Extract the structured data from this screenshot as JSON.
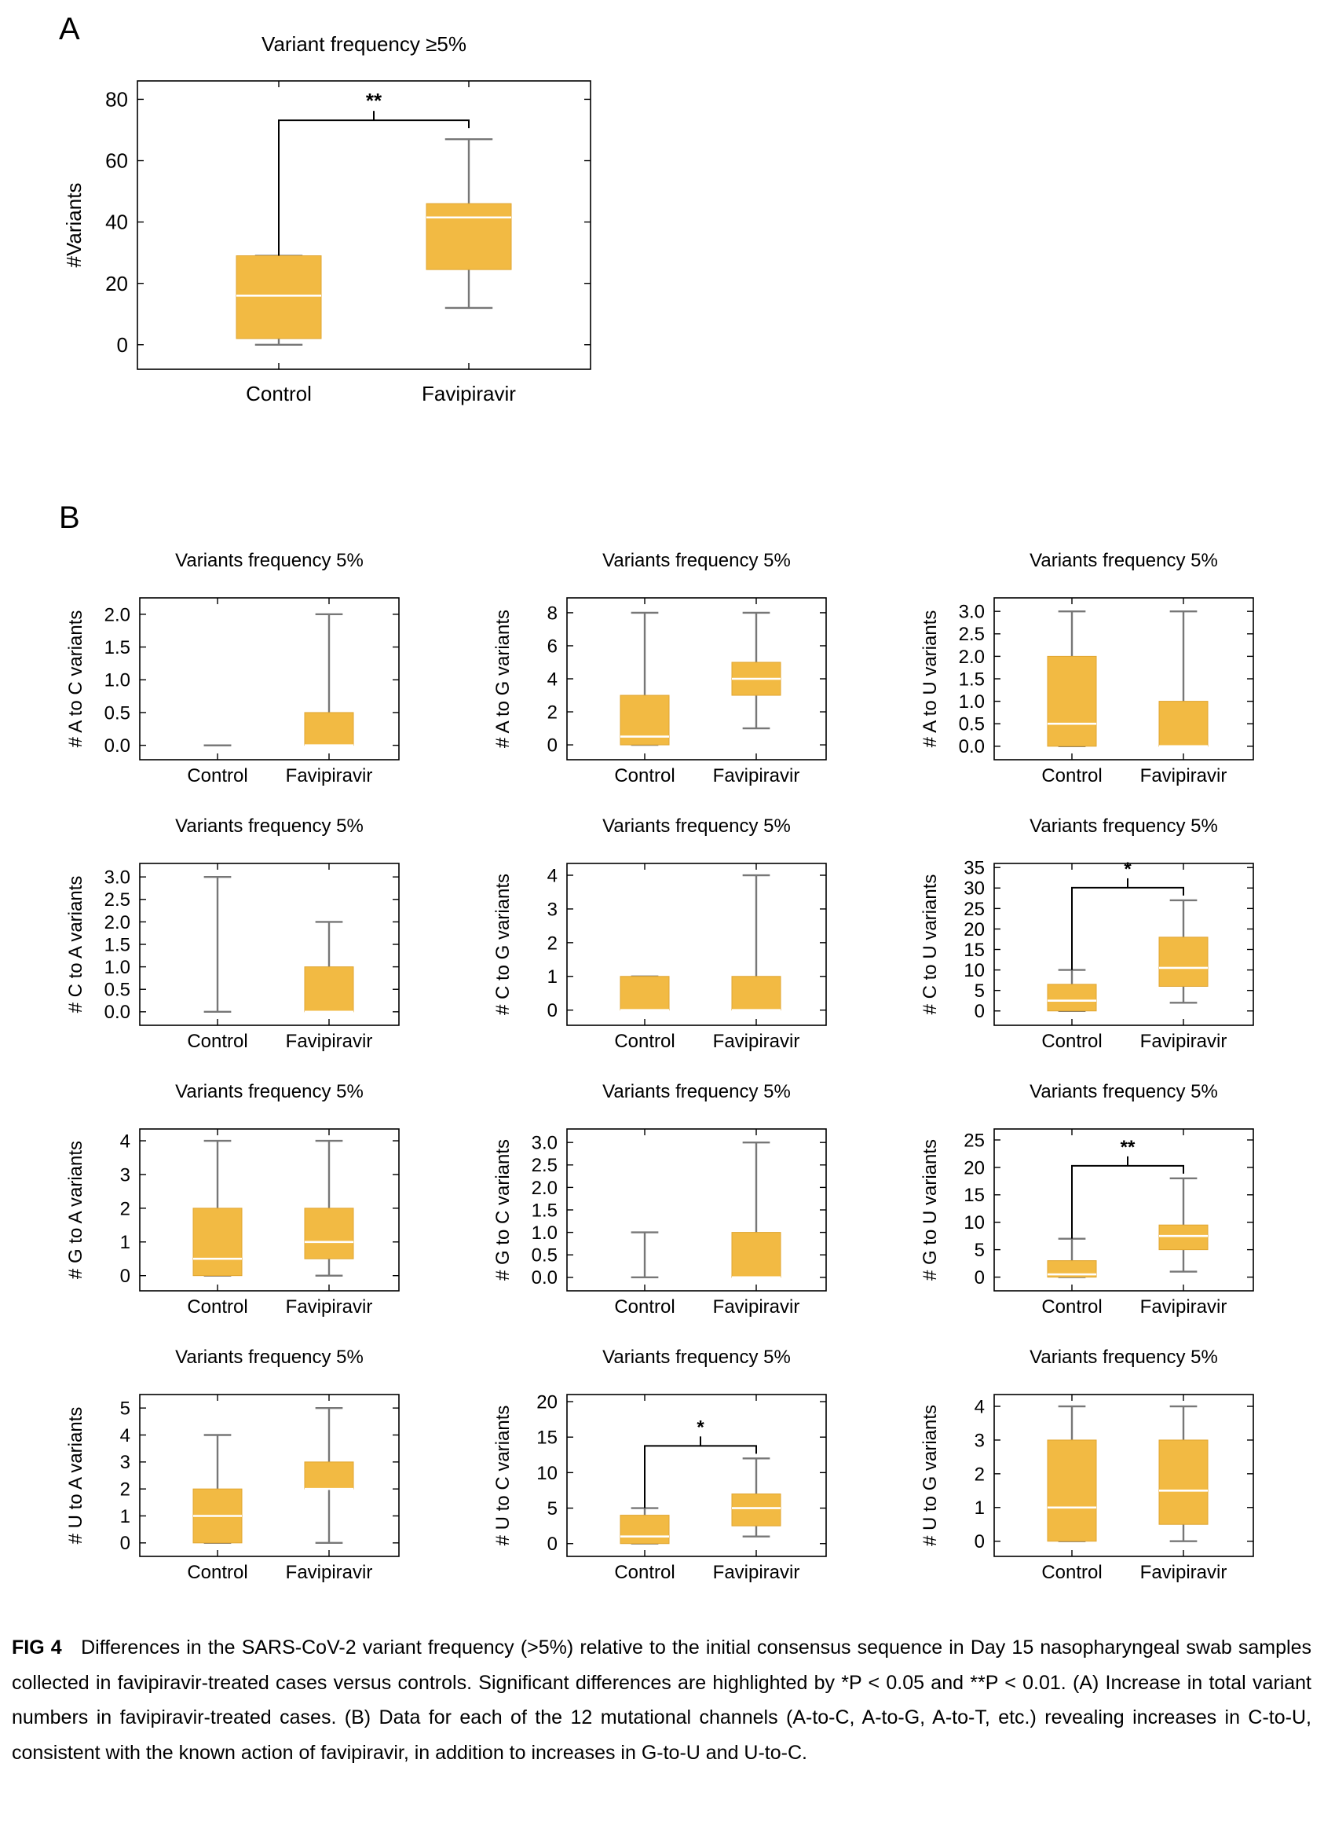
{
  "figure": {
    "panel_a_letter": "A",
    "panel_b_letter": "B"
  },
  "colors": {
    "box_fill": "#F2BA43",
    "median": "#ffffff",
    "whisker": "#777777",
    "axis": "#000000",
    "bracket": "#000000"
  },
  "chart_data": [
    {
      "id": "A",
      "type": "box",
      "title": "Variant frequency ≥5%",
      "ylabel": "#Variants",
      "ylim": [
        -8,
        86
      ],
      "yticks": [
        0,
        20,
        40,
        60,
        80
      ],
      "categories": [
        "Control",
        "Favipiravir"
      ],
      "boxes": [
        {
          "min": 0,
          "q1": 2,
          "median": 16,
          "q3": 29,
          "max": 29
        },
        {
          "min": 12,
          "q1": 24.5,
          "median": 41.5,
          "q3": 46,
          "max": 67
        }
      ],
      "significance": "**",
      "grid": false
    },
    {
      "id": "AC",
      "type": "box",
      "title": "Variants frequency 5%",
      "ylabel": "# A to C variants",
      "ylim": [
        -0.22,
        2.25
      ],
      "yticks": [
        0.0,
        0.5,
        1.0,
        1.5,
        2.0
      ],
      "tick_decimals": 1,
      "categories": [
        "Control",
        "Favipiravir"
      ],
      "boxes": [
        {
          "min": 0,
          "q1": 0,
          "median": 0,
          "q3": 0,
          "max": 0
        },
        {
          "min": 0,
          "q1": 0,
          "median": 0,
          "q3": 0.5,
          "max": 2
        }
      ],
      "grid": false
    },
    {
      "id": "AG",
      "type": "box",
      "title": "Variants frequency 5%",
      "ylabel": "# A to G variants",
      "ylim": [
        -0.9,
        8.9
      ],
      "yticks": [
        0,
        2,
        4,
        6,
        8
      ],
      "categories": [
        "Control",
        "Favipiravir"
      ],
      "boxes": [
        {
          "min": 0,
          "q1": 0,
          "median": 0.5,
          "q3": 3,
          "max": 8
        },
        {
          "min": 1,
          "q1": 3,
          "median": 4,
          "q3": 5,
          "max": 8
        }
      ],
      "grid": false
    },
    {
      "id": "AU",
      "type": "box",
      "title": "Variants frequency 5%",
      "ylabel": "# A to U variants",
      "ylim": [
        -0.3,
        3.3
      ],
      "yticks": [
        0.0,
        0.5,
        1.0,
        1.5,
        2.0,
        2.5,
        3.0
      ],
      "tick_decimals": 1,
      "categories": [
        "Control",
        "Favipiravir"
      ],
      "boxes": [
        {
          "min": 0,
          "q1": 0,
          "median": 0.5,
          "q3": 2,
          "max": 3
        },
        {
          "min": 0,
          "q1": 0,
          "median": 0,
          "q3": 1,
          "max": 3
        }
      ],
      "grid": false
    },
    {
      "id": "CA",
      "type": "box",
      "title": "Variants frequency 5%",
      "ylabel": "# C to A variants",
      "ylim": [
        -0.3,
        3.3
      ],
      "yticks": [
        0.0,
        0.5,
        1.0,
        1.5,
        2.0,
        2.5,
        3.0
      ],
      "tick_decimals": 1,
      "categories": [
        "Control",
        "Favipiravir"
      ],
      "boxes": [
        {
          "min": 0,
          "q1": 0,
          "median": 0,
          "q3": 0,
          "max": 3
        },
        {
          "min": 0,
          "q1": 0,
          "median": 0,
          "q3": 1,
          "max": 2
        }
      ],
      "grid": false
    },
    {
      "id": "CG",
      "type": "box",
      "title": "Variants frequency 5%",
      "ylabel": "# C to G variants",
      "ylim": [
        -0.45,
        4.35
      ],
      "yticks": [
        0,
        1,
        2,
        3,
        4
      ],
      "categories": [
        "Control",
        "Favipiravir"
      ],
      "boxes": [
        {
          "min": 0,
          "q1": 0,
          "median": 0,
          "q3": 1,
          "max": 1
        },
        {
          "min": 0,
          "q1": 0,
          "median": 0,
          "q3": 1,
          "max": 4
        }
      ],
      "grid": false
    },
    {
      "id": "CU",
      "type": "box",
      "title": "Variants frequency 5%",
      "ylabel": "# C to U variants",
      "ylim": [
        -3.5,
        36
      ],
      "yticks": [
        0,
        5,
        10,
        15,
        20,
        25,
        30,
        35
      ],
      "categories": [
        "Control",
        "Favipiravir"
      ],
      "boxes": [
        {
          "min": 0,
          "q1": 0,
          "median": 2.5,
          "q3": 6.5,
          "max": 10
        },
        {
          "min": 2,
          "q1": 6,
          "median": 10.5,
          "q3": 18,
          "max": 27
        }
      ],
      "significance": "*",
      "grid": false
    },
    {
      "id": "GA",
      "type": "box",
      "title": "Variants frequency 5%",
      "ylabel": "# G to A variants",
      "ylim": [
        -0.45,
        4.35
      ],
      "yticks": [
        0,
        1,
        2,
        3,
        4
      ],
      "categories": [
        "Control",
        "Favipiravir"
      ],
      "boxes": [
        {
          "min": 0,
          "q1": 0,
          "median": 0.5,
          "q3": 2,
          "max": 4
        },
        {
          "min": 0,
          "q1": 0.5,
          "median": 1,
          "q3": 2,
          "max": 4
        }
      ],
      "grid": false
    },
    {
      "id": "GC",
      "type": "box",
      "title": "Variants frequency 5%",
      "ylabel": "# G to C variants",
      "ylim": [
        -0.3,
        3.3
      ],
      "yticks": [
        0.0,
        0.5,
        1.0,
        1.5,
        2.0,
        2.5,
        3.0
      ],
      "tick_decimals": 1,
      "categories": [
        "Control",
        "Favipiravir"
      ],
      "boxes": [
        {
          "min": 0,
          "q1": 0,
          "median": 0,
          "q3": 0,
          "max": 1
        },
        {
          "min": 0,
          "q1": 0,
          "median": 0,
          "q3": 1,
          "max": 3
        }
      ],
      "grid": false
    },
    {
      "id": "GU",
      "type": "box",
      "title": "Variants frequency 5%",
      "ylabel": "# G to U variants",
      "ylim": [
        -2.5,
        27
      ],
      "yticks": [
        0,
        5,
        10,
        15,
        20,
        25
      ],
      "categories": [
        "Control",
        "Favipiravir"
      ],
      "boxes": [
        {
          "min": 0,
          "q1": 0,
          "median": 0.5,
          "q3": 3,
          "max": 7
        },
        {
          "min": 1,
          "q1": 5,
          "median": 7.5,
          "q3": 9.5,
          "max": 18
        }
      ],
      "significance": "**",
      "grid": false
    },
    {
      "id": "UA",
      "type": "box",
      "title": "Variants frequency 5%",
      "ylabel": "# U to A variants",
      "ylim": [
        -0.5,
        5.5
      ],
      "yticks": [
        0,
        1,
        2,
        3,
        4,
        5
      ],
      "categories": [
        "Control",
        "Favipiravir"
      ],
      "boxes": [
        {
          "min": 0,
          "q1": 0,
          "median": 1,
          "q3": 2,
          "max": 4
        },
        {
          "min": 0,
          "q1": 2,
          "median": 2,
          "q3": 3,
          "max": 5
        }
      ],
      "grid": false
    },
    {
      "id": "UC",
      "type": "box",
      "title": "Variants frequency 5%",
      "ylabel": "# U to C variants",
      "ylim": [
        -1.8,
        21
      ],
      "yticks": [
        0,
        5,
        10,
        15,
        20
      ],
      "categories": [
        "Control",
        "Favipiravir"
      ],
      "boxes": [
        {
          "min": 0,
          "q1": 0,
          "median": 1,
          "q3": 4,
          "max": 5
        },
        {
          "min": 1,
          "q1": 2.5,
          "median": 5,
          "q3": 7,
          "max": 12
        }
      ],
      "significance": "*",
      "grid": false
    },
    {
      "id": "UG",
      "type": "box",
      "title": "Variants frequency 5%",
      "ylabel": "# U to G variants",
      "ylim": [
        -0.45,
        4.35
      ],
      "yticks": [
        0,
        1,
        2,
        3,
        4
      ],
      "categories": [
        "Control",
        "Favipiravir"
      ],
      "boxes": [
        {
          "min": 0,
          "q1": 0,
          "median": 1,
          "q3": 3,
          "max": 4
        },
        {
          "min": 0,
          "q1": 0.5,
          "median": 1.5,
          "q3": 3,
          "max": 4
        }
      ],
      "grid": false
    }
  ],
  "caption": {
    "label": "FIG 4",
    "text": "Differences in the SARS-CoV-2 variant frequency (>5%) relative to the initial consensus sequence in Day 15 nasopharyngeal swab samples collected in favipiravir-treated cases versus controls. Significant differences are highlighted by *P < 0.05 and **P < 0.01. (A) Increase in total variant numbers in favipiravir-treated cases. (B) Data for each of the 12 mutational channels (A-to-C, A-to-G, A-to-T, etc.) revealing increases in C-to-U, consistent with the known action of favipiravir, in addition to increases in G-to-U and U-to-C."
  }
}
